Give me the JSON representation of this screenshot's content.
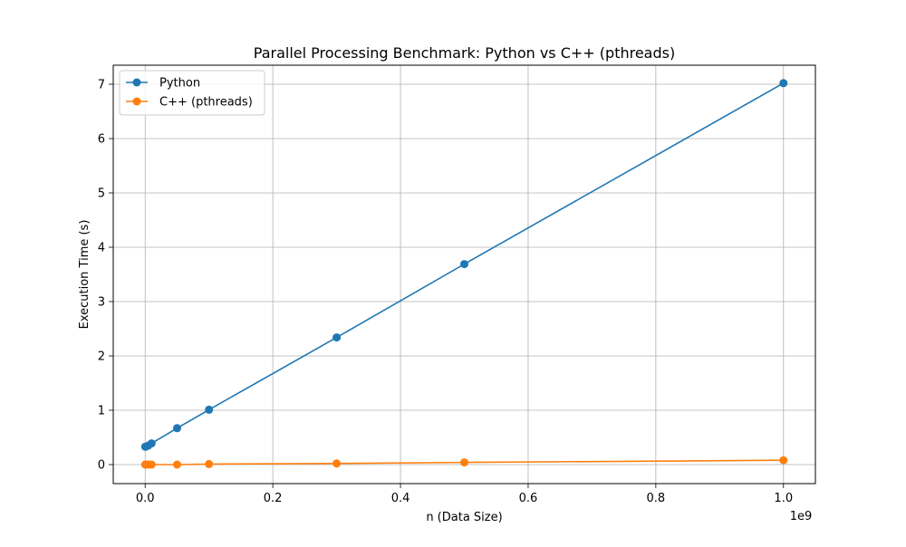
{
  "chart_data": {
    "type": "line",
    "title": "Parallel Processing Benchmark: Python vs C++ (pthreads)",
    "xlabel": "n (Data Size)",
    "ylabel": "Execution Time (s)",
    "x_scale_label": "1e9",
    "x_scale_factor": 1000000000,
    "xlim": [
      -50000000,
      1050000000
    ],
    "ylim": [
      -0.35,
      7.35
    ],
    "x_ticks": [
      0,
      200000000,
      400000000,
      600000000,
      800000000,
      1000000000
    ],
    "x_tick_labels": [
      "0.0",
      "0.2",
      "0.4",
      "0.6",
      "0.8",
      "1.0"
    ],
    "y_ticks": [
      0,
      1,
      2,
      3,
      4,
      5,
      6,
      7
    ],
    "y_tick_labels": [
      "0",
      "1",
      "2",
      "3",
      "4",
      "5",
      "6",
      "7"
    ],
    "grid": true,
    "legend_position": "top-left",
    "series": [
      {
        "name": "Python",
        "color": "#1f77b4",
        "x": [
          100000,
          1000000,
          5000000,
          10000000,
          50000000,
          100000000,
          300000000,
          500000000,
          1000000000
        ],
        "y": [
          0.33,
          0.33,
          0.35,
          0.39,
          0.67,
          1.01,
          2.34,
          3.69,
          7.02
        ]
      },
      {
        "name": "C++ (pthreads)",
        "color": "#ff7f0e",
        "x": [
          100000,
          1000000,
          5000000,
          10000000,
          50000000,
          100000000,
          300000000,
          500000000,
          1000000000
        ],
        "y": [
          0.0,
          0.0,
          0.0,
          0.0,
          0.0,
          0.01,
          0.02,
          0.04,
          0.08
        ]
      }
    ]
  }
}
